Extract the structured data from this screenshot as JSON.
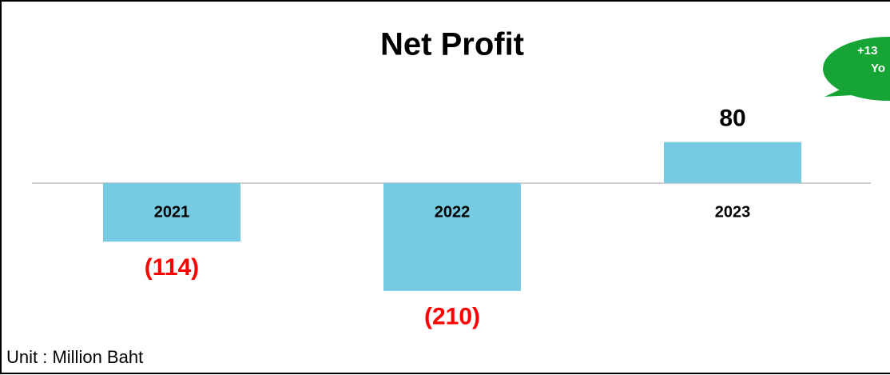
{
  "chart_data": {
    "type": "bar",
    "title": "Net Profit",
    "categories": [
      "2021",
      "2022",
      "2023"
    ],
    "values": [
      -114,
      -210,
      80
    ],
    "value_labels": [
      "(114)",
      "(210)",
      "80"
    ],
    "color": "#76cbe2",
    "negative_label_color": "#ff0000",
    "unit_note": "Unit : Million Baht",
    "annotation": [
      "+13",
      "Yo"
    ],
    "annotation_color": "#16a535"
  }
}
